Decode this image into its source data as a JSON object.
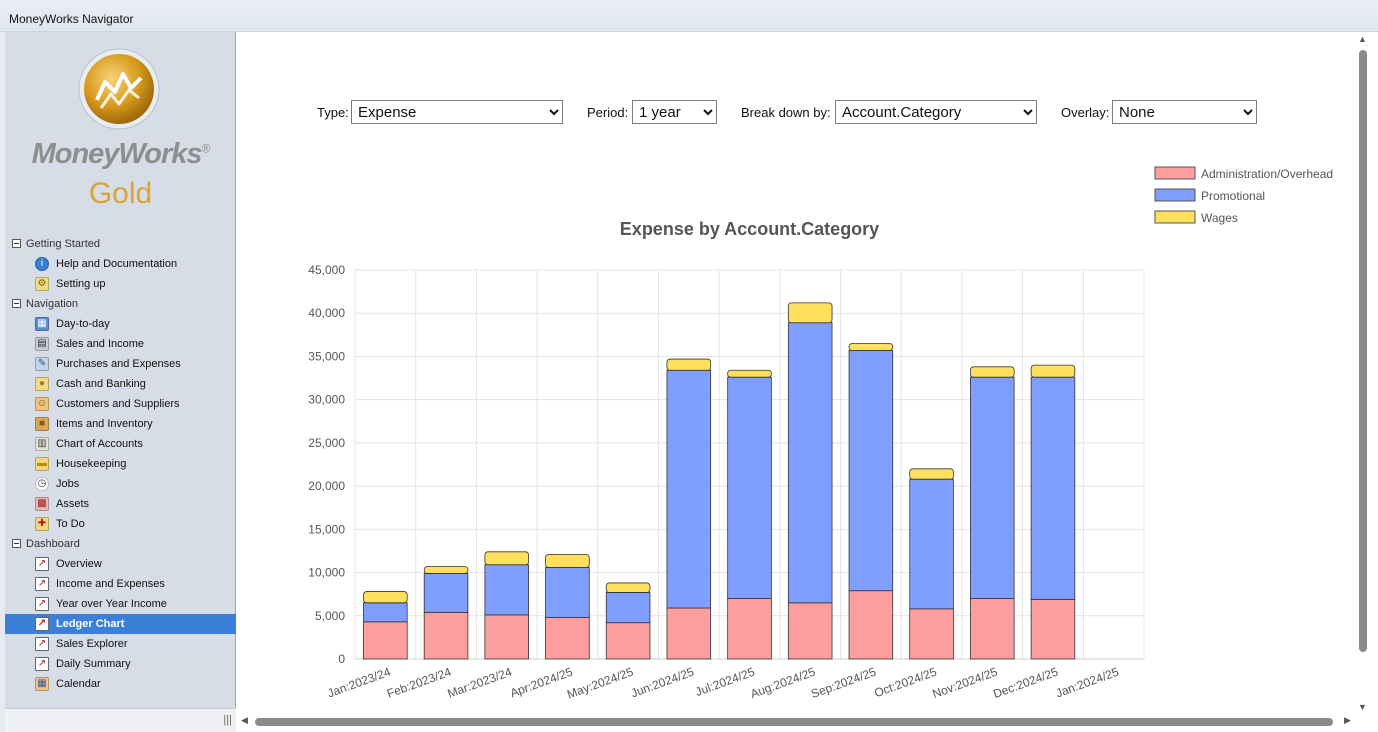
{
  "window": {
    "title": "MoneyWorks Navigator"
  },
  "logo": {
    "brand": "MoneyWorks",
    "edition": "Gold"
  },
  "sidebar": {
    "groups": [
      {
        "label": "Getting Started",
        "items": [
          {
            "label": "Help and Documentation",
            "icon": "info-icon"
          },
          {
            "label": "Setting up",
            "icon": "setup-icon"
          }
        ]
      },
      {
        "label": "Navigation",
        "items": [
          {
            "label": "Day-to-day",
            "icon": "calendar-icon"
          },
          {
            "label": "Sales and Income",
            "icon": "register-icon"
          },
          {
            "label": "Purchases and Expenses",
            "icon": "pen-icon"
          },
          {
            "label": "Cash and Banking",
            "icon": "coins-icon"
          },
          {
            "label": "Customers and Suppliers",
            "icon": "people-icon"
          },
          {
            "label": "Items and Inventory",
            "icon": "box-icon"
          },
          {
            "label": "Chart of Accounts",
            "icon": "book-icon"
          },
          {
            "label": "Housekeeping",
            "icon": "folder-icon"
          },
          {
            "label": "Jobs",
            "icon": "clock-icon"
          },
          {
            "label": "Assets",
            "icon": "building-icon"
          },
          {
            "label": "To Do",
            "icon": "todo-icon"
          }
        ]
      },
      {
        "label": "Dashboard",
        "items": [
          {
            "label": "Overview",
            "icon": "line-chart-icon"
          },
          {
            "label": "Income and Expenses",
            "icon": "line-chart-icon"
          },
          {
            "label": "Year over Year Income",
            "icon": "line-chart-icon"
          },
          {
            "label": "Ledger Chart",
            "icon": "line-chart-icon",
            "selected": true
          },
          {
            "label": "Sales Explorer",
            "icon": "line-chart-icon"
          },
          {
            "label": "Daily Summary",
            "icon": "line-chart-icon"
          },
          {
            "label": "Calendar",
            "icon": "calendar-grid-icon"
          }
        ]
      }
    ]
  },
  "controls": {
    "type": {
      "label": "Type:",
      "value": "Expense"
    },
    "period": {
      "label": "Period:",
      "value": "1 year"
    },
    "breakdown": {
      "label": "Break down by:",
      "value": "Account.Category"
    },
    "overlay": {
      "label": "Overlay:",
      "value": "None"
    }
  },
  "colors": {
    "admin": "#ff9e9e",
    "promo": "#7f9eff",
    "wages": "#ffdf5e",
    "grid": "#e4e4e4",
    "title": "#555555",
    "axis": "#555555"
  },
  "chart_data": {
    "type": "bar",
    "stacked": true,
    "title": "Expense by Account.Category",
    "xlabel": "",
    "ylabel": "",
    "ylim": [
      0,
      45000
    ],
    "ytick_labels": [
      "0",
      "5,000",
      "10,000",
      "15,000",
      "20,000",
      "25,000",
      "30,000",
      "35,000",
      "40,000",
      "45,000"
    ],
    "grid": true,
    "legend": "top-right",
    "categories": [
      "Jan:2023/24",
      "Feb:2023/24",
      "Mar:2023/24",
      "Apr:2024/25",
      "May:2024/25",
      "Jun:2024/25",
      "Jul:2024/25",
      "Aug:2024/25",
      "Sep:2024/25",
      "Oct:2024/25",
      "Nov:2024/25",
      "Dec:2024/25",
      "Jan:2024/25"
    ],
    "series": [
      {
        "name": "Administration/Overhead",
        "color": "#ff9e9e",
        "values": [
          4300,
          5400,
          5100,
          4800,
          4200,
          5900,
          7000,
          6500,
          7900,
          5800,
          7000,
          6900,
          0
        ]
      },
      {
        "name": "Promotional",
        "color": "#7f9eff",
        "values": [
          2200,
          4500,
          5800,
          5800,
          3500,
          27500,
          25600,
          32400,
          27800,
          15000,
          25600,
          25700,
          0
        ]
      },
      {
        "name": "Wages",
        "color": "#ffdf5e",
        "values": [
          1300,
          800,
          1500,
          1500,
          1100,
          1300,
          800,
          2300,
          800,
          1200,
          1200,
          1400,
          0
        ]
      }
    ]
  }
}
